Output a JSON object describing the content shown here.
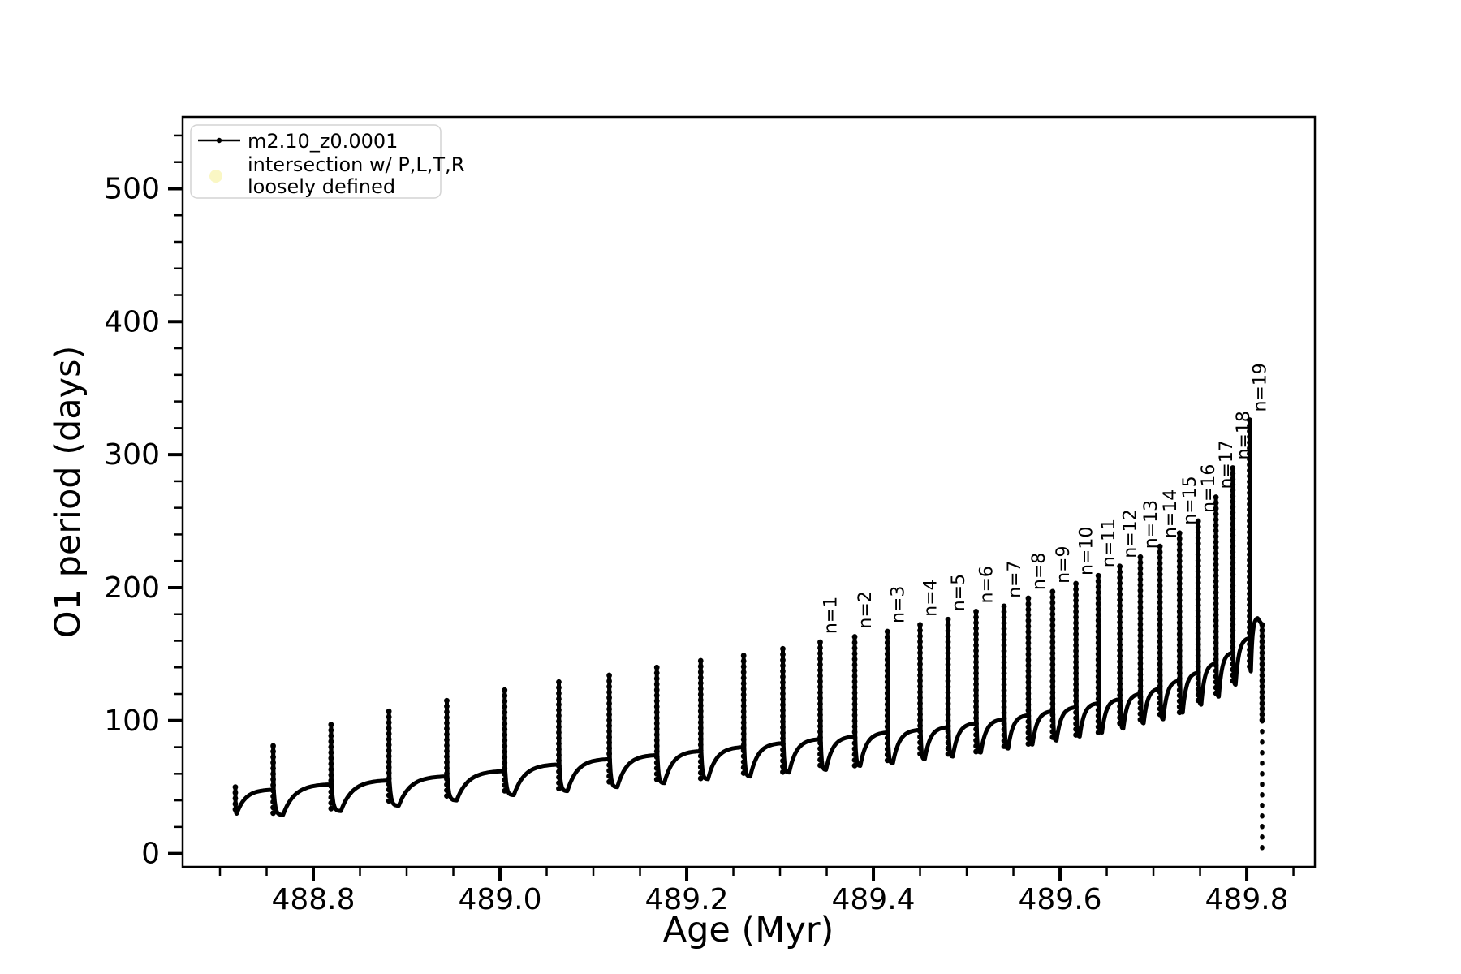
{
  "figure": {
    "background": "#ffffff",
    "line_color": "#000000"
  },
  "legend": {
    "border_color": "#d4d4d4",
    "background": "#ffffff",
    "items": [
      {
        "type": "line-with-dot-marker",
        "color": "#000000",
        "label": "m2.10_z0.0001"
      },
      {
        "type": "filled-circle",
        "color": "#faf7c4",
        "label_line1": "intersection w/ P,L,T,R",
        "label_line2": "loosely defined"
      }
    ]
  },
  "chart_data": {
    "type": "line",
    "title": "",
    "xlabel": "Age (Myr)",
    "ylabel": "O1 period (days)",
    "xlim": [
      488.66,
      489.873
    ],
    "ylim": [
      -10,
      554
    ],
    "grid": false,
    "legend_position": "upper-left",
    "x_ticks": {
      "major": [
        {
          "value": 488.8,
          "label": "488.8"
        },
        {
          "value": 489.0,
          "label": "489.0"
        },
        {
          "value": 489.2,
          "label": "489.2"
        },
        {
          "value": 489.4,
          "label": "489.4"
        },
        {
          "value": 489.6,
          "label": "489.6"
        },
        {
          "value": 489.8,
          "label": "489.8"
        }
      ],
      "minor_step": 0.05
    },
    "y_ticks": {
      "major": [
        {
          "value": 0,
          "label": "0"
        },
        {
          "value": 100,
          "label": "100"
        },
        {
          "value": 200,
          "label": "200"
        },
        {
          "value": 300,
          "label": "300"
        },
        {
          "value": 400,
          "label": "400"
        },
        {
          "value": 500,
          "label": "500"
        }
      ],
      "minor_step": 20
    },
    "series": [
      {
        "name": "m2.10_z0.0001",
        "color": "#000000",
        "marker_style": "dotted-beaded-line",
        "start": {
          "x": 488.7165,
          "y": 50,
          "dip_x": 488.718,
          "dip_y": 30
        },
        "cycles": [
          {
            "x": 488.757,
            "peak": 81,
            "plateau": 48,
            "dip": 29
          },
          {
            "x": 488.819,
            "peak": 97,
            "plateau": 52,
            "dip": 32
          },
          {
            "x": 488.881,
            "peak": 107,
            "plateau": 55,
            "dip": 36
          },
          {
            "x": 488.943,
            "peak": 115,
            "plateau": 58,
            "dip": 40
          },
          {
            "x": 489.005,
            "peak": 123,
            "plateau": 62,
            "dip": 44
          },
          {
            "x": 489.063,
            "peak": 129,
            "plateau": 67,
            "dip": 47
          },
          {
            "x": 489.117,
            "peak": 134,
            "plateau": 71,
            "dip": 50
          },
          {
            "x": 489.168,
            "peak": 140,
            "plateau": 74,
            "dip": 53
          },
          {
            "x": 489.215,
            "peak": 145,
            "plateau": 77,
            "dip": 56
          },
          {
            "x": 489.261,
            "peak": 149,
            "plateau": 80,
            "dip": 58
          },
          {
            "x": 489.303,
            "peak": 154,
            "plateau": 83,
            "dip": 61
          },
          {
            "x": 489.343,
            "peak": 159,
            "plateau": 86,
            "dip": 63,
            "label": "n=1"
          },
          {
            "x": 489.38,
            "peak": 163,
            "plateau": 88,
            "dip": 66,
            "label": "n=2"
          },
          {
            "x": 489.415,
            "peak": 167,
            "plateau": 91,
            "dip": 68,
            "label": "n=3"
          },
          {
            "x": 489.45,
            "peak": 172,
            "plateau": 93,
            "dip": 71,
            "label": "n=4"
          },
          {
            "x": 489.48,
            "peak": 176,
            "plateau": 95,
            "dip": 73,
            "label": "n=5"
          },
          {
            "x": 489.51,
            "peak": 182,
            "plateau": 98,
            "dip": 76,
            "label": "n=6"
          },
          {
            "x": 489.54,
            "peak": 186,
            "plateau": 101,
            "dip": 79,
            "label": "n=7"
          },
          {
            "x": 489.566,
            "peak": 192,
            "plateau": 104,
            "dip": 82,
            "label": "n=8"
          },
          {
            "x": 489.592,
            "peak": 197,
            "plateau": 107,
            "dip": 85,
            "label": "n=9"
          },
          {
            "x": 489.617,
            "peak": 203,
            "plateau": 110,
            "dip": 88,
            "label": "n=10"
          },
          {
            "x": 489.641,
            "peak": 209,
            "plateau": 113,
            "dip": 91,
            "label": "n=11"
          },
          {
            "x": 489.664,
            "peak": 216,
            "plateau": 116,
            "dip": 94,
            "label": "n=12"
          },
          {
            "x": 489.686,
            "peak": 223,
            "plateau": 120,
            "dip": 98,
            "label": "n=13"
          },
          {
            "x": 489.707,
            "peak": 231,
            "plateau": 124,
            "dip": 101,
            "label": "n=14"
          },
          {
            "x": 489.728,
            "peak": 241,
            "plateau": 130,
            "dip": 106,
            "label": "n=15"
          },
          {
            "x": 489.748,
            "peak": 250,
            "plateau": 136,
            "dip": 112,
            "label": "n=16"
          },
          {
            "x": 489.767,
            "peak": 268,
            "plateau": 143,
            "dip": 118,
            "label": "n=17"
          },
          {
            "x": 489.785,
            "peak": 290,
            "plateau": 151,
            "dip": 127,
            "label": "n=18"
          },
          {
            "x": 489.803,
            "peak": 326,
            "plateau": 162,
            "dip": 137,
            "label": "n=19"
          }
        ],
        "end": {
          "arc_top_x": 489.8115,
          "arc_top_y": 177,
          "plunge_x": 489.8165,
          "plunge_solid_to": 100,
          "plunge_bottom": 0
        }
      }
    ]
  }
}
